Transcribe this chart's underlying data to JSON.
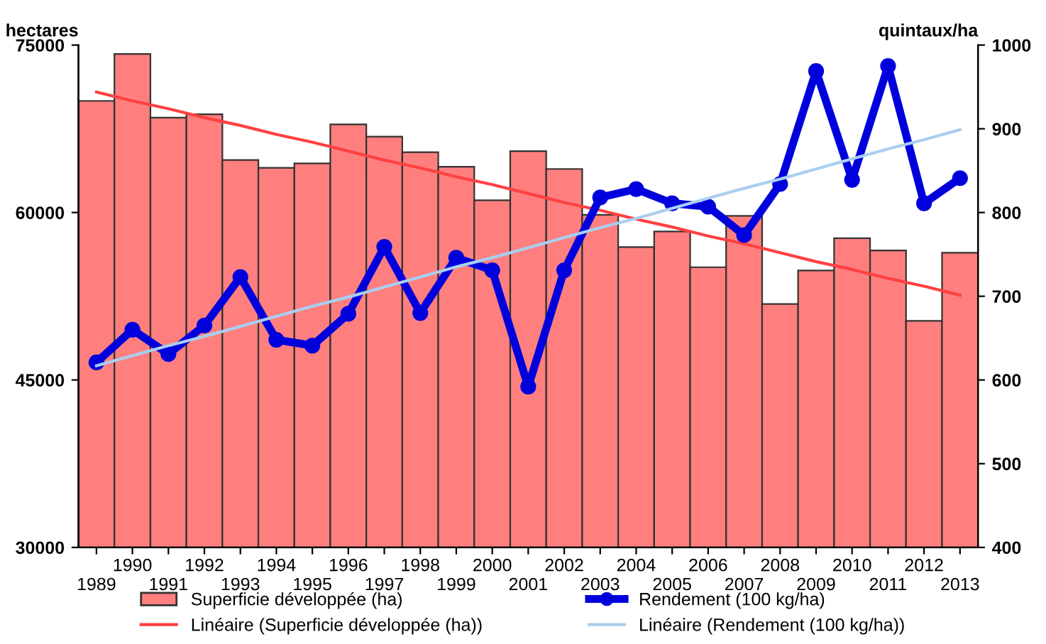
{
  "chart_data": {
    "type": "bar",
    "ylabel": "hectares",
    "y2label": "quintaux/ha",
    "categories": [
      "1989",
      "1990",
      "1991",
      "1992",
      "1993",
      "1994",
      "1995",
      "1996",
      "1997",
      "1998",
      "1999",
      "2000",
      "2001",
      "2002",
      "2003",
      "2004",
      "2005",
      "2006",
      "2007",
      "2008",
      "2009",
      "2010",
      "2011",
      "2012",
      "2013"
    ],
    "series": [
      {
        "name": "Superficie développée (ha)",
        "color": "#ff7f7f",
        "values": [
          70000,
          74200,
          68500,
          68800,
          64700,
          64000,
          64400,
          67900,
          66800,
          65400,
          64100,
          61100,
          65500,
          63900,
          59800,
          56900,
          58300,
          55100,
          59700,
          51800,
          54800,
          57700,
          56600,
          50300,
          56400
        ]
      },
      {
        "name": "Linéaire (Superficie développée (ha))",
        "type": "line",
        "color": "#ff4040",
        "values": [
          70800,
          70000,
          69300,
          68500,
          67800,
          67000,
          66300,
          65500,
          64700,
          64000,
          63200,
          62500,
          61700,
          60900,
          60200,
          59400,
          58700,
          57900,
          57200,
          56400,
          55600,
          54900,
          54100,
          53400,
          52600
        ]
      },
      {
        "name": "Rendement (100 kg/ha)",
        "type": "line",
        "axis": "y2",
        "marker": "circle",
        "color": "#0000dd",
        "values": [
          621,
          660,
          631,
          665,
          723,
          648,
          641,
          679,
          759,
          680,
          746,
          731,
          592,
          731,
          818,
          828,
          811,
          807,
          773,
          834,
          969,
          839,
          975,
          811,
          841
        ]
      },
      {
        "name": "Linéaire (Rendement (100 kg/ha))",
        "type": "line",
        "axis": "y2",
        "color": "#a8cff0",
        "values": [
          617,
          629,
          641,
          652,
          664,
          676,
          688,
          699,
          711,
          723,
          735,
          746,
          758,
          770,
          782,
          793,
          805,
          817,
          829,
          840,
          852,
          864,
          876,
          887,
          899
        ]
      }
    ],
    "ylim": [
      30000,
      75000
    ],
    "yticks": [
      30000,
      45000,
      60000,
      75000
    ],
    "y2lim": [
      400,
      1000
    ],
    "y2ticks": [
      400,
      500,
      600,
      700,
      800,
      900,
      1000
    ],
    "legend": "bottom",
    "grid": false
  }
}
